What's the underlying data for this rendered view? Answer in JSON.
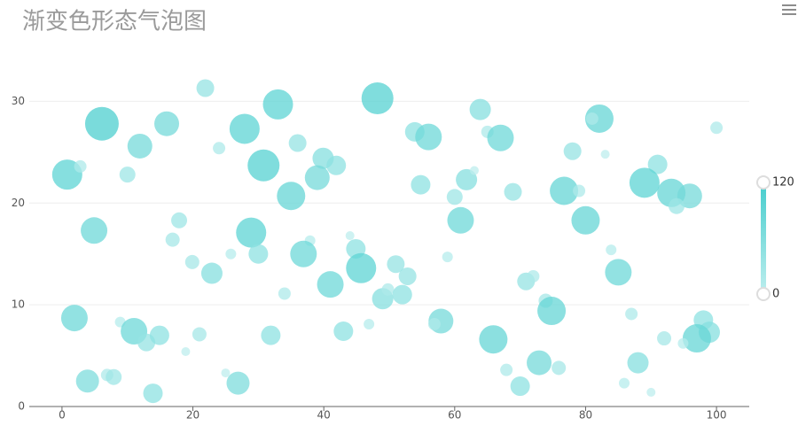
{
  "chart_data": {
    "type": "scatter",
    "title": "渐变色形态气泡图",
    "x": [
      0.8,
      2.8,
      6.1,
      11.9,
      16,
      10,
      21.9,
      24,
      27.9,
      33,
      30.8,
      36,
      39.9,
      41.9,
      39,
      35,
      48.2,
      53.9,
      56,
      63.9,
      65,
      67,
      54.8,
      61.8,
      63,
      60,
      68.9,
      76.7,
      79,
      78,
      82.1,
      81,
      83,
      91,
      89,
      93.1,
      95.9,
      93.9,
      100,
      60.9,
      80,
      4.9,
      17.9,
      16.9,
      28.9,
      30,
      37.9,
      36.9,
      44,
      44.9,
      45.7,
      51,
      52.8,
      41,
      19.9,
      25.8,
      22.9,
      34,
      49,
      49.8,
      52,
      58.9,
      70.9,
      72,
      83.9,
      85,
      73.9,
      74.8,
      1.9,
      8.9,
      11,
      12.9,
      14.9,
      21,
      18.9,
      31.9,
      43,
      46.9,
      57.9,
      56.9,
      65.9,
      87,
      98,
      98.9,
      97,
      92,
      94.9,
      3.9,
      6.9,
      7.9,
      13.9,
      25,
      26.9,
      67.9,
      70,
      72.9,
      75.9,
      88,
      85.9,
      90
    ],
    "values": [
      22.8,
      23.6,
      27.8,
      25.6,
      27.8,
      22.8,
      31.3,
      25.4,
      27.3,
      29.7,
      23.7,
      25.9,
      24.4,
      23.7,
      22.5,
      20.7,
      30.3,
      27,
      26.5,
      29.2,
      27,
      26.4,
      21.8,
      22.3,
      23.2,
      20.6,
      21.1,
      21.2,
      21.2,
      25.1,
      28.3,
      28.3,
      24.8,
      23.8,
      22,
      21,
      20.7,
      19.7,
      27.4,
      18.3,
      18.3,
      17.3,
      18.3,
      16.4,
      17.1,
      15,
      16.3,
      15,
      16.8,
      15.5,
      13.6,
      14,
      12.8,
      12,
      14.2,
      15,
      13.1,
      11.1,
      10.6,
      11.5,
      11,
      14.7,
      12.3,
      12.8,
      15.4,
      13.2,
      10.4,
      9.4,
      8.7,
      8.3,
      7.4,
      6.3,
      7,
      7.1,
      5.4,
      7,
      7.4,
      8.1,
      8.4,
      8.1,
      6.6,
      9.1,
      8.5,
      7.3,
      6.7,
      6.7,
      6.2,
      2.5,
      3.1,
      2.9,
      1.3,
      3.3,
      2.3,
      3.6,
      2,
      4.3,
      3.8,
      4.3,
      2.3,
      1.4
    ],
    "sizes": [
      96,
      16,
      112,
      72,
      72,
      32,
      40,
      16,
      96,
      96,
      104,
      40,
      56,
      48,
      72,
      88,
      104,
      48,
      80,
      56,
      16,
      80,
      48,
      56,
      0,
      32,
      40,
      88,
      16,
      40,
      88,
      16,
      0,
      48,
      96,
      88,
      72,
      32,
      16,
      80,
      88,
      80,
      32,
      24,
      96,
      48,
      8,
      80,
      0,
      48,
      96,
      40,
      40,
      80,
      24,
      8,
      56,
      16,
      56,
      16,
      48,
      8,
      40,
      16,
      8,
      80,
      24,
      88,
      80,
      8,
      80,
      40,
      48,
      24,
      0,
      48,
      48,
      8,
      72,
      16,
      88,
      16,
      48,
      56,
      88,
      24,
      8,
      64,
      16,
      32,
      48,
      0,
      64,
      16,
      48,
      72,
      24,
      56,
      8,
      0
    ],
    "xlim": [
      -5,
      105
    ],
    "ylim": [
      0,
      35
    ],
    "xticks": [
      0,
      20,
      40,
      60,
      80,
      100
    ],
    "yticks": [
      0,
      10,
      20,
      30
    ],
    "grid": true,
    "visual_map": {
      "min": 0,
      "max": 120,
      "colors": [
        "#bdeeee",
        "#46cdcd"
      ]
    }
  }
}
